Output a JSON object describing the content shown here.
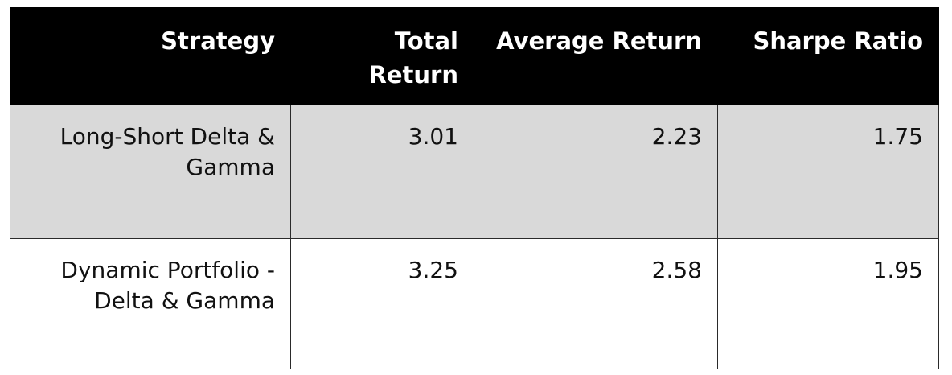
{
  "table": {
    "headers": [
      "Strategy",
      "Total Return",
      "Average Return",
      "Sharpe Ratio"
    ],
    "rows": [
      [
        "Long-Short Delta & Gamma",
        "3.01",
        "2.23",
        "1.75"
      ],
      [
        "Dynamic Portfolio - Delta & Gamma",
        "3.25",
        "2.58",
        "1.95"
      ]
    ]
  },
  "colors": {
    "header_bg": "#000000",
    "header_text": "#ffffff",
    "shaded_row": "#d9d9d9",
    "plain_row": "#ffffff"
  }
}
